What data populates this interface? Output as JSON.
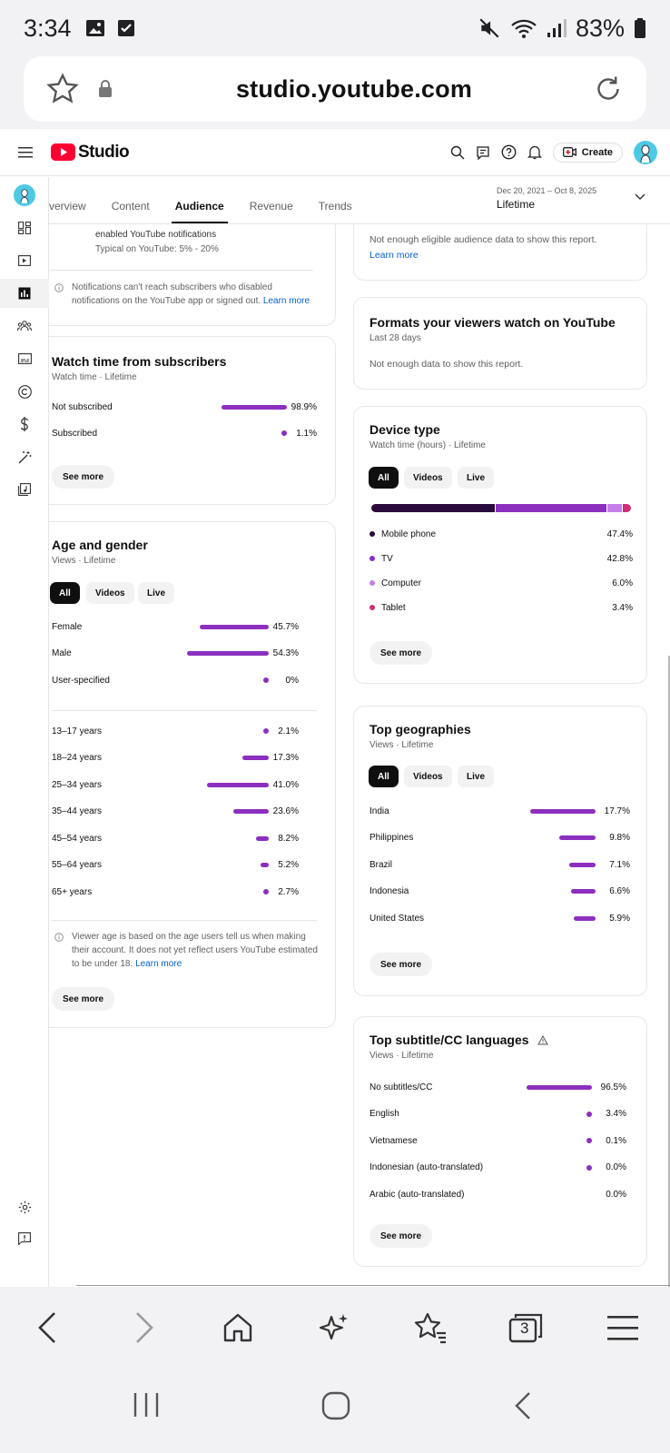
{
  "status_bar": {
    "time": "3:34",
    "battery": "83%"
  },
  "browser": {
    "url": "studio.youtube.com",
    "tab_count": "3"
  },
  "header": {
    "logo": "Studio",
    "create_label": "Create"
  },
  "tabs": [
    "verview",
    "Content",
    "Audience",
    "Revenue",
    "Trends"
  ],
  "date": {
    "range": "Dec 20, 2021 – Oct 8, 2025",
    "label": "Lifetime"
  },
  "notifications_card": {
    "line1": "enabled YouTube notifications",
    "line2": "Typical on YouTube: 5% - 20%",
    "note": "Notifications can't reach subscribers who disabled notifications on the YouTube app or signed out.",
    "learn_more": "Learn more"
  },
  "watch_time_subscribers": {
    "title": "Watch time from subscribers",
    "subtitle": "Watch time · Lifetime",
    "rows": [
      {
        "label": "Not subscribed",
        "value": "98.9%",
        "pct": 98.9
      },
      {
        "label": "Subscribed",
        "value": "1.1%",
        "pct": 1.1
      }
    ],
    "see_more": "See more"
  },
  "age_gender": {
    "title": "Age and gender",
    "subtitle": "Views · Lifetime",
    "chips": [
      "All",
      "Videos",
      "Live"
    ],
    "gender_rows": [
      {
        "label": "Female",
        "value": "45.7%",
        "pct": 45.7
      },
      {
        "label": "Male",
        "value": "54.3%",
        "pct": 54.3
      },
      {
        "label": "User-specified",
        "value": "0%",
        "pct": 0
      }
    ],
    "age_rows": [
      {
        "label": "13–17 years",
        "value": "2.1%",
        "pct": 2.1
      },
      {
        "label": "18–24 years",
        "value": "17.3%",
        "pct": 17.3
      },
      {
        "label": "25–34 years",
        "value": "41.0%",
        "pct": 41.0
      },
      {
        "label": "35–44 years",
        "value": "23.6%",
        "pct": 23.6
      },
      {
        "label": "45–54 years",
        "value": "8.2%",
        "pct": 8.2
      },
      {
        "label": "55–64 years",
        "value": "5.2%",
        "pct": 5.2
      },
      {
        "label": "65+ years",
        "value": "2.7%",
        "pct": 2.7
      }
    ],
    "note": "Viewer age is based on the age users tell us when making their account. It does not yet reflect users YouTube estimated to be under 18.",
    "learn_more": "Learn more",
    "see_more": "See more"
  },
  "eligible_card": {
    "text": "Not enough eligible audience data to show this report.",
    "learn_more": "Learn more"
  },
  "formats_card": {
    "title": "Formats your viewers watch on YouTube",
    "subtitle": "Last 28 days",
    "text": "Not enough data to show this report."
  },
  "device_type": {
    "title": "Device type",
    "subtitle": "Watch time (hours) · Lifetime",
    "chips": [
      "All",
      "Videos",
      "Live"
    ],
    "rows": [
      {
        "label": "Mobile phone",
        "value": "47.4%",
        "pct": 47.4,
        "color": "#2b0a3d"
      },
      {
        "label": "TV",
        "value": "42.8%",
        "pct": 42.8,
        "color": "#8c2fbf"
      },
      {
        "label": "Computer",
        "value": "6.0%",
        "pct": 6.0,
        "color": "#c77dea"
      },
      {
        "label": "Tablet",
        "value": "3.4%",
        "pct": 3.4,
        "color": "#cc2f77"
      }
    ],
    "see_more": "See more"
  },
  "top_geographies": {
    "title": "Top geographies",
    "subtitle": "Views · Lifetime",
    "chips": [
      "All",
      "Videos",
      "Live"
    ],
    "rows": [
      {
        "label": "India",
        "value": "17.7%",
        "pct": 17.7
      },
      {
        "label": "Philippines",
        "value": "9.8%",
        "pct": 9.8
      },
      {
        "label": "Brazil",
        "value": "7.1%",
        "pct": 7.1
      },
      {
        "label": "Indonesia",
        "value": "6.6%",
        "pct": 6.6
      },
      {
        "label": "United States",
        "value": "5.9%",
        "pct": 5.9
      }
    ],
    "see_more": "See more"
  },
  "subtitle_languages": {
    "title": "Top subtitle/CC languages",
    "subtitle": "Views · Lifetime",
    "rows": [
      {
        "label": "No subtitles/CC",
        "value": "96.5%",
        "pct": 96.5
      },
      {
        "label": "English",
        "value": "3.4%",
        "pct": 3.4
      },
      {
        "label": "Vietnamese",
        "value": "0.1%",
        "pct": 0.1
      },
      {
        "label": "Indonesian (auto-translated)",
        "value": "0.0%",
        "pct": 0.0
      },
      {
        "label": "Arabic (auto-translated)",
        "value": "0.0%",
        "pct": 0.0
      }
    ],
    "see_more": "See more"
  },
  "colors": {
    "accent": "#8c2fbf",
    "brand_red": "#ff0033",
    "link": "#065fd4"
  }
}
